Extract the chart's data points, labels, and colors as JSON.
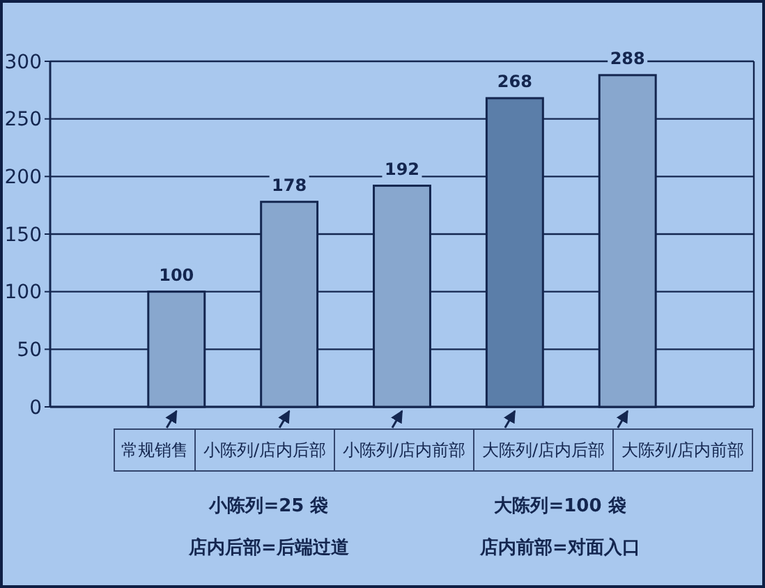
{
  "chart_data": {
    "type": "bar",
    "categories": [
      "常规销售",
      "小陈列/店内后部",
      "小陈列/店内前部",
      "大陈列/店内后部",
      "大陈列/店内前部"
    ],
    "values": [
      100,
      178,
      192,
      268,
      288
    ],
    "colors": [
      "#88a7ce",
      "#88a7ce",
      "#88a7ce",
      "#5b7ea9",
      "#88a7ce"
    ],
    "ylim": [
      0,
      300
    ],
    "yticks": [
      0,
      50,
      100,
      150,
      200,
      250,
      300
    ],
    "grid": "y",
    "data_labels": true,
    "annotations": [
      "小陈列=25 袋",
      "大陈列=100 袋",
      "店内后部=后端过道",
      "店内前部=对面入口"
    ]
  }
}
